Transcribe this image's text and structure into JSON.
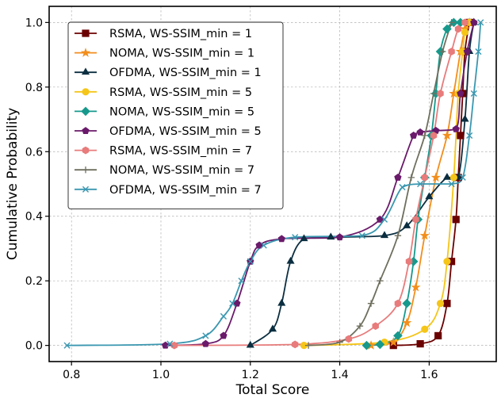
{
  "chart_data": {
    "type": "line",
    "title": "",
    "xlabel": "Total Score",
    "ylabel": "Cumulative Probability",
    "xlim": [
      0.75,
      1.75
    ],
    "ylim": [
      -0.05,
      1.05
    ],
    "xticks": [
      0.8,
      1.0,
      1.2,
      1.4,
      1.6
    ],
    "yticks": [
      0.0,
      0.2,
      0.4,
      0.6,
      0.8,
      1.0
    ],
    "xtick_labels": [
      "0.8",
      "1.0",
      "1.2",
      "1.4",
      "1.6"
    ],
    "ytick_labels": [
      "0.0",
      "0.2",
      "0.4",
      "0.6",
      "0.8",
      "1.0"
    ],
    "grid": true,
    "legend_position": "upper-left",
    "series": [
      {
        "name": "RSMA, WS-SSIM_min = 1",
        "color": "#6b0000",
        "marker": "square",
        "x": [
          1.52,
          1.58,
          1.62,
          1.64,
          1.65,
          1.66,
          1.665,
          1.67,
          1.675,
          1.68,
          1.69
        ],
        "y": [
          0.0,
          0.005,
          0.03,
          0.13,
          0.26,
          0.39,
          0.52,
          0.65,
          0.78,
          0.91,
          1.0
        ]
      },
      {
        "name": "NOMA, WS-SSIM_min = 1",
        "color": "#f28e1c",
        "marker": "star",
        "x": [
          1.47,
          1.52,
          1.55,
          1.57,
          1.59,
          1.615,
          1.64,
          1.655,
          1.67,
          1.68,
          1.69
        ],
        "y": [
          0.0,
          0.01,
          0.07,
          0.18,
          0.34,
          0.52,
          0.65,
          0.78,
          0.91,
          0.98,
          1.0
        ]
      },
      {
        "name": "OFDMA, WS-SSIM_min = 1",
        "color": "#0b2e40",
        "marker": "triangle",
        "x": [
          1.2,
          1.25,
          1.27,
          1.29,
          1.32,
          1.38,
          1.5,
          1.55,
          1.6,
          1.64,
          1.665,
          1.68,
          1.69,
          1.7
        ],
        "y": [
          0.0,
          0.05,
          0.13,
          0.26,
          0.33,
          0.335,
          0.34,
          0.37,
          0.46,
          0.52,
          0.52,
          0.7,
          0.91,
          1.0
        ]
      },
      {
        "name": "RSMA, WS-SSIM_min = 5",
        "color": "#f5c518",
        "marker": "circle",
        "x": [
          1.32,
          1.5,
          1.59,
          1.625,
          1.64,
          1.655,
          1.665,
          1.675,
          1.68,
          1.69
        ],
        "y": [
          0.0,
          0.01,
          0.05,
          0.13,
          0.26,
          0.52,
          0.78,
          0.91,
          0.97,
          1.0
        ]
      },
      {
        "name": "NOMA, WS-SSIM_min = 5",
        "color": "#16998c",
        "marker": "diamond",
        "x": [
          1.46,
          1.49,
          1.53,
          1.55,
          1.565,
          1.575,
          1.59,
          1.605,
          1.615,
          1.625,
          1.64,
          1.655,
          1.67
        ],
        "y": [
          0.0,
          0.003,
          0.03,
          0.13,
          0.26,
          0.39,
          0.52,
          0.65,
          0.78,
          0.91,
          0.98,
          1.0,
          1.0
        ]
      },
      {
        "name": "OFDMA, WS-SSIM_min = 5",
        "color": "#6a1a6a",
        "marker": "pentagon",
        "x": [
          1.01,
          1.1,
          1.14,
          1.17,
          1.2,
          1.22,
          1.27,
          1.4,
          1.49,
          1.53,
          1.565,
          1.58,
          1.615,
          1.66,
          1.67,
          1.685,
          1.7
        ],
        "y": [
          0.0,
          0.005,
          0.03,
          0.13,
          0.26,
          0.31,
          0.33,
          0.335,
          0.39,
          0.52,
          0.65,
          0.66,
          0.665,
          0.67,
          0.78,
          0.91,
          1.0
        ]
      },
      {
        "name": "RSMA, WS-SSIM_min = 7",
        "color": "#e87b7b",
        "marker": "hexagon",
        "x": [
          1.03,
          1.3,
          1.42,
          1.48,
          1.53,
          1.555,
          1.57,
          1.59,
          1.61,
          1.625,
          1.65,
          1.665,
          1.68
        ],
        "y": [
          0.0,
          0.003,
          0.02,
          0.06,
          0.13,
          0.26,
          0.39,
          0.52,
          0.65,
          0.78,
          0.91,
          0.98,
          1.0
        ]
      },
      {
        "name": "NOMA, WS-SSIM_min = 7",
        "color": "#6f6f5f",
        "marker": "plus",
        "x": [
          1.33,
          1.4,
          1.445,
          1.47,
          1.49,
          1.53,
          1.56,
          1.59,
          1.61,
          1.63,
          1.65
        ],
        "y": [
          0.0,
          0.01,
          0.06,
          0.13,
          0.2,
          0.34,
          0.52,
          0.65,
          0.78,
          0.91,
          1.0
        ]
      },
      {
        "name": "OFDMA, WS-SSIM_min = 7",
        "color": "#3a97b0",
        "marker": "x",
        "x": [
          0.79,
          1.02,
          1.1,
          1.14,
          1.16,
          1.18,
          1.2,
          1.23,
          1.3,
          1.45,
          1.5,
          1.54,
          1.58,
          1.65,
          1.675,
          1.69,
          1.7,
          1.71,
          1.715
        ],
        "y": [
          0.0,
          0.005,
          0.03,
          0.09,
          0.13,
          0.2,
          0.26,
          0.31,
          0.335,
          0.34,
          0.39,
          0.49,
          0.5,
          0.5,
          0.52,
          0.65,
          0.78,
          0.91,
          1.0
        ]
      }
    ]
  }
}
